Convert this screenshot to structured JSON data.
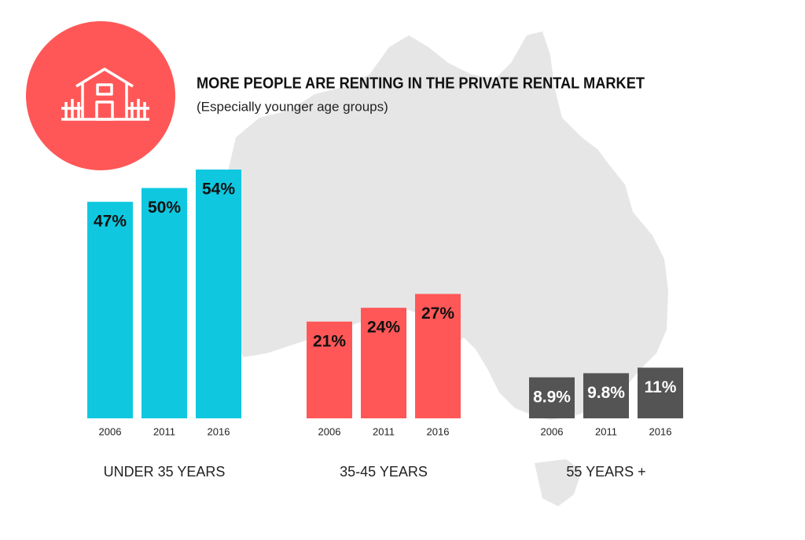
{
  "chart_data": {
    "type": "bar",
    "title": "MORE PEOPLE ARE RENTING IN THE PRIVATE RENTAL MARKET",
    "subtitle": "(Especially younger age groups)",
    "groups": [
      {
        "name": "UNDER 35 YEARS",
        "color": "#0fc8e0",
        "label_color": "#111111",
        "categories": [
          "2006",
          "2011",
          "2016"
        ],
        "values": [
          47,
          50,
          54
        ],
        "value_labels": [
          "47%",
          "50%",
          "54%"
        ]
      },
      {
        "name": "35-45 YEARS",
        "color": "#ff5757",
        "label_color": "#111111",
        "categories": [
          "2006",
          "2011",
          "2016"
        ],
        "values": [
          21,
          24,
          27
        ],
        "value_labels": [
          "21%",
          "24%",
          "27%"
        ]
      },
      {
        "name": "55 YEARS +",
        "color": "#545454",
        "label_color": "#ffffff",
        "categories": [
          "2006",
          "2011",
          "2016"
        ],
        "values": [
          8.9,
          9.8,
          11
        ],
        "value_labels": [
          "8.9%",
          "9.8%",
          "11%"
        ]
      }
    ]
  }
}
